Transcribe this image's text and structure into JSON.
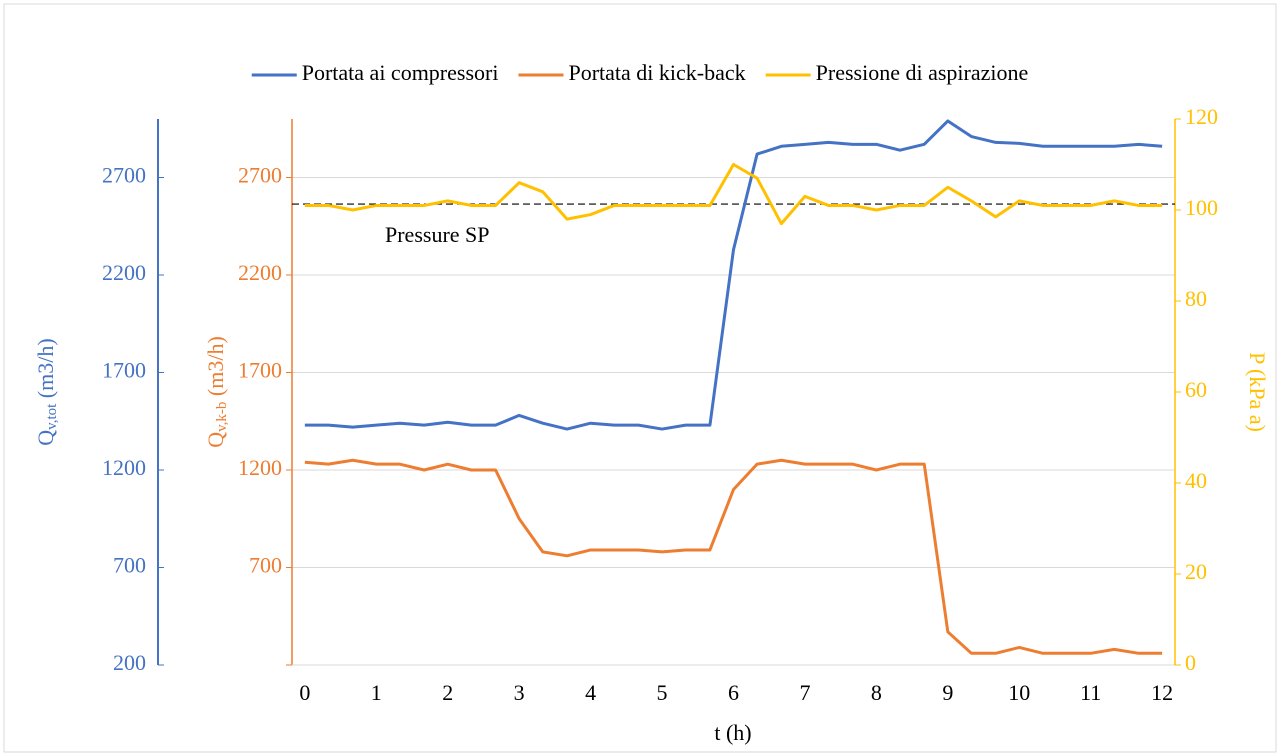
{
  "chart_data": {
    "type": "line",
    "x": [
      0,
      0.33,
      0.67,
      1,
      1.33,
      1.67,
      2,
      2.33,
      2.67,
      3,
      3.33,
      3.67,
      4,
      4.33,
      4.67,
      5,
      5.33,
      5.67,
      6,
      6.33,
      6.67,
      7,
      7.33,
      7.67,
      8,
      8.33,
      8.67,
      9,
      9.33,
      9.67,
      10,
      10.33,
      10.67,
      11,
      11.33,
      11.67,
      12
    ],
    "xlim": [
      -0.18,
      12.18
    ],
    "xticks": [
      0,
      1,
      2,
      3,
      4,
      5,
      6,
      7,
      8,
      9,
      10,
      11,
      12
    ],
    "x_label": "t (h)",
    "y_label": {
      "main": "Q",
      "sub": "v,tot",
      "rest": " (m3/h)"
    },
    "ylim": [
      200,
      3000
    ],
    "yticks": [
      200,
      700,
      1200,
      1700,
      2200,
      2700
    ],
    "y2_label": {
      "main": "Q",
      "sub": "v,k-b",
      "rest": " (m3/h)"
    },
    "y2lim": [
      200,
      3000
    ],
    "y2ticks": [
      200,
      700,
      1200,
      1700,
      2200,
      2700
    ],
    "y3_label": "P (kPa a)",
    "y3lim": [
      0,
      120
    ],
    "y3ticks": [
      0,
      20,
      40,
      60,
      80,
      100,
      120
    ],
    "grid": true,
    "legend": "top",
    "series": [
      {
        "name": "Portata ai compressori",
        "color": "#4472C4",
        "axis": "y",
        "values": [
          1430,
          1430,
          1420,
          1430,
          1440,
          1430,
          1445,
          1430,
          1430,
          1480,
          1440,
          1410,
          1440,
          1430,
          1430,
          1410,
          1430,
          1430,
          2330,
          2820,
          2860,
          2870,
          2880,
          2870,
          2870,
          2840,
          2870,
          2990,
          2910,
          2880,
          2875,
          2860,
          2860,
          2860,
          2860,
          2870,
          2860
        ]
      },
      {
        "name": "Portata di kick-back",
        "color": "#ED7D31",
        "axis": "y2",
        "values": [
          1240,
          1230,
          1250,
          1230,
          1230,
          1200,
          1230,
          1200,
          1200,
          950,
          780,
          760,
          790,
          790,
          790,
          780,
          790,
          790,
          1100,
          1230,
          1250,
          1230,
          1230,
          1230,
          1200,
          1230,
          1230,
          370,
          260,
          260,
          290,
          260,
          260,
          260,
          280,
          260,
          260
        ]
      },
      {
        "name": "Pressione di aspirazione",
        "color": "#FFC000",
        "axis": "y3",
        "values": [
          101,
          101,
          100,
          101,
          101,
          101,
          102,
          101,
          101,
          106,
          104,
          98,
          99,
          101,
          101,
          101,
          101,
          101,
          110,
          107,
          97,
          103,
          101,
          101,
          100,
          101,
          101,
          105,
          102,
          98.5,
          102,
          101,
          101,
          101,
          102,
          101,
          101
        ]
      }
    ],
    "reference_line": {
      "label": "Pressure SP",
      "value": 101.3,
      "axis": "y3"
    }
  }
}
